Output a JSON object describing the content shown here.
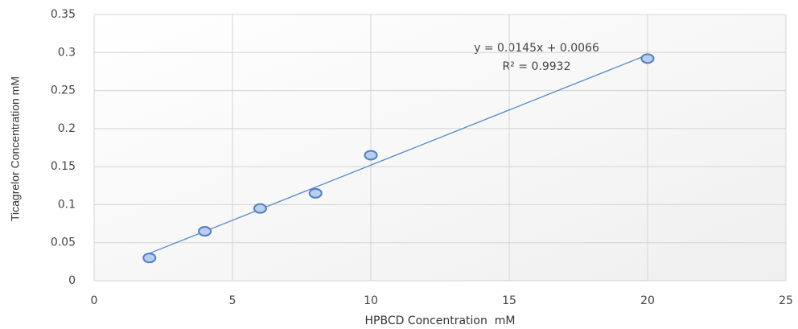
{
  "chart_data": {
    "type": "scatter",
    "x_label": "HPBCD Concentration  mM",
    "y_label": "Ticagrelor Concentration mM",
    "x": [
      2,
      4,
      6,
      8,
      10,
      20
    ],
    "series": [
      {
        "color": "#4f7fc0",
        "values": [
          0.03,
          0.065,
          0.095,
          0.115,
          0.165,
          0.292
        ]
      }
    ],
    "trendline": {
      "color": "#5b8ac6",
      "x": [
        2,
        20
      ],
      "values": [
        0.036,
        0.297
      ]
    },
    "annotations": [
      "y = 0.0145x + 0.0066",
      "R² = 0.9932"
    ],
    "xlim": [
      0,
      25
    ],
    "xticks": [
      0,
      5,
      10,
      15,
      20,
      25
    ],
    "ylim": [
      0,
      0.35
    ],
    "yticks": [
      0,
      0.05,
      0.1,
      0.15,
      0.2,
      0.25,
      0.3,
      0.35
    ],
    "grid": true
  }
}
